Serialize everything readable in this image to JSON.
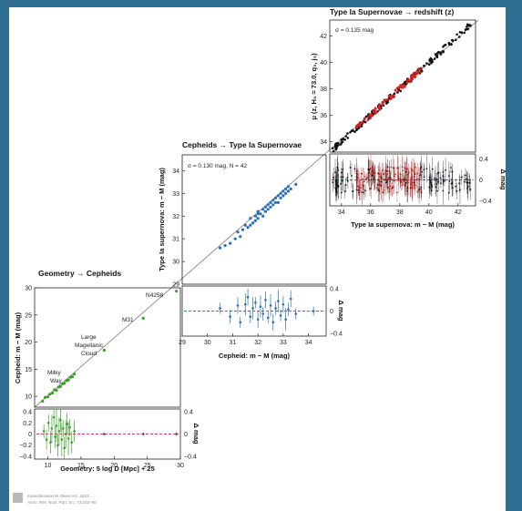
{
  "theme": {
    "background": "#2f6f92",
    "figure_background": "#ffffff",
    "colors": {
      "geometry": "#3ba02a",
      "cepheid": "#2a6fb8",
      "sn_red": "#d42020",
      "sn_black": "#111111",
      "zero_line": "#d7337a",
      "diagonal": "#8a8a8a"
    }
  },
  "credit": {
    "line1": "Kamionkowski M, Riess AG. 2023.",
    "line2": "Annu. Rev. Nucl. Part. Sci. 73:153–80"
  },
  "chart_data": [
    {
      "id": "geometry-cepheids",
      "type": "scatter",
      "title": "Geometry → Cepheids",
      "xlabel": "Geometry: 5 log D [Mpc] + 25",
      "ylabel": "Cepheid: m − M (mag)",
      "xlim": [
        8,
        30
      ],
      "ylim": [
        8,
        30
      ],
      "xticks": [
        "10",
        "15",
        "20",
        "25",
        "30"
      ],
      "yticks": [
        "10",
        "15",
        "20",
        "25",
        "30"
      ],
      "annotations": [
        {
          "text": "N4258",
          "x": 29.4,
          "y": 29.4
        },
        {
          "text": "M31",
          "x": 24.4,
          "y": 24.4
        },
        {
          "text": "Large",
          "x": 18.5,
          "y": 18.5
        },
        {
          "text": "Magellanic",
          "x": 18.5,
          "y": 18.5
        },
        {
          "text": "Cloud",
          "x": 18.5,
          "y": 18.5
        },
        {
          "text": "Milky",
          "x": 10.5,
          "y": 10.5
        },
        {
          "text": "Way",
          "x": 10.5,
          "y": 10.5
        }
      ],
      "series": [
        {
          "points": [
            [
              9.2,
              9.1
            ],
            [
              9.6,
              9.8
            ],
            [
              10.0,
              9.9
            ],
            [
              10.3,
              10.4
            ],
            [
              10.7,
              10.6
            ],
            [
              11.0,
              11.2
            ],
            [
              11.3,
              11.1
            ],
            [
              11.6,
              11.7
            ],
            [
              11.9,
              11.8
            ],
            [
              12.2,
              12.3
            ],
            [
              12.5,
              12.4
            ],
            [
              12.8,
              12.9
            ],
            [
              13.1,
              13.0
            ],
            [
              13.4,
              13.5
            ],
            [
              13.7,
              13.6
            ],
            [
              14.0,
              14.1
            ],
            [
              18.5,
              18.5
            ],
            [
              24.4,
              24.4
            ],
            [
              29.4,
              29.4
            ]
          ]
        }
      ],
      "residuals": {
        "ylabel": "Δ mag",
        "ylim": [
          -0.45,
          0.45
        ],
        "yticks_left": [
          "0.4",
          "0.2",
          "0",
          "−0.2",
          "−0.4"
        ],
        "yticks_right": [
          "0.4",
          "0",
          "−0.4"
        ],
        "points": [
          [
            9.4,
            0.05,
            0.12
          ],
          [
            9.8,
            -0.1,
            0.18
          ],
          [
            10.1,
            0.2,
            0.15
          ],
          [
            10.4,
            -0.15,
            0.2
          ],
          [
            10.6,
            0.1,
            0.25
          ],
          [
            10.9,
            0.3,
            0.15
          ],
          [
            11.1,
            -0.05,
            0.2
          ],
          [
            11.3,
            0.15,
            0.3
          ],
          [
            11.5,
            -0.2,
            0.2
          ],
          [
            11.7,
            0.05,
            0.25
          ],
          [
            11.9,
            0.25,
            0.2
          ],
          [
            12.1,
            -0.1,
            0.3
          ],
          [
            12.3,
            0.1,
            0.15
          ],
          [
            12.5,
            -0.25,
            0.2
          ],
          [
            12.7,
            0.0,
            0.25
          ],
          [
            12.9,
            0.18,
            0.2
          ],
          [
            13.1,
            -0.08,
            0.3
          ],
          [
            13.3,
            0.12,
            0.15
          ],
          [
            13.6,
            -0.15,
            0.2
          ],
          [
            14.0,
            0.05,
            0.2
          ],
          [
            18.5,
            0.0,
            0.02
          ],
          [
            24.4,
            0.0,
            0.03
          ],
          [
            29.4,
            0.0,
            0.03
          ]
        ]
      }
    },
    {
      "id": "cepheids-sn",
      "type": "scatter",
      "title": "Cepheids → Type Ia Supernovae",
      "xlabel": "Cepheid: m − M (mag)",
      "ylabel": "Type Ia supernova: m − M (mag)",
      "xlim": [
        29,
        34.7
      ],
      "ylim": [
        29,
        34.7
      ],
      "xticks": [
        "29",
        "30",
        "31",
        "32",
        "33",
        "34"
      ],
      "yticks": [
        "29",
        "30",
        "31",
        "32",
        "33",
        "34"
      ],
      "annotation": "σ = 0.130 mag, N = 42",
      "series": [
        {
          "points": [
            [
              30.5,
              30.6
            ],
            [
              30.9,
              30.8
            ],
            [
              31.2,
              31.3
            ],
            [
              31.3,
              31.1
            ],
            [
              31.5,
              31.6
            ],
            [
              31.6,
              31.5
            ],
            [
              31.7,
              31.9
            ],
            [
              31.8,
              31.7
            ],
            [
              31.9,
              32.0
            ],
            [
              32.0,
              31.9
            ],
            [
              32.0,
              32.2
            ],
            [
              32.1,
              32.1
            ],
            [
              32.2,
              32.3
            ],
            [
              32.3,
              32.2
            ],
            [
              32.3,
              32.4
            ],
            [
              32.4,
              32.5
            ],
            [
              32.5,
              32.4
            ],
            [
              32.5,
              32.6
            ],
            [
              32.6,
              32.7
            ],
            [
              32.7,
              32.6
            ],
            [
              32.7,
              32.8
            ],
            [
              32.8,
              32.9
            ],
            [
              32.9,
              32.8
            ],
            [
              32.9,
              33.0
            ],
            [
              33.0,
              33.1
            ],
            [
              33.0,
              32.9
            ],
            [
              33.1,
              33.2
            ],
            [
              33.1,
              33.0
            ],
            [
              33.2,
              33.3
            ],
            [
              32.2,
              32.0
            ],
            [
              31.4,
              31.4
            ],
            [
              31.1,
              31.0
            ],
            [
              30.7,
              30.7
            ],
            [
              32.6,
              32.5
            ],
            [
              32.8,
              32.6
            ],
            [
              33.2,
              33.1
            ],
            [
              33.5,
              33.4
            ],
            [
              32.4,
              32.3
            ],
            [
              31.9,
              31.8
            ],
            [
              31.7,
              31.6
            ],
            [
              33.3,
              33.2
            ],
            [
              32.0,
              32.1
            ]
          ]
        }
      ],
      "residuals": {
        "ylabel": "Δ mag",
        "ylim": [
          -0.45,
          0.45
        ],
        "yticks": [
          "0.4",
          "0",
          "−0.4"
        ],
        "points": [
          [
            30.5,
            0.05,
            0.1
          ],
          [
            30.9,
            -0.1,
            0.12
          ],
          [
            31.2,
            0.1,
            0.15
          ],
          [
            31.3,
            -0.2,
            0.1
          ],
          [
            31.5,
            0.12,
            0.2
          ],
          [
            31.6,
            0.25,
            0.15
          ],
          [
            31.7,
            -0.1,
            0.12
          ],
          [
            31.8,
            0.05,
            0.2
          ],
          [
            31.9,
            0.15,
            0.1
          ],
          [
            32.0,
            -0.15,
            0.15
          ],
          [
            32.1,
            0.08,
            0.2
          ],
          [
            32.2,
            -0.05,
            0.12
          ],
          [
            32.3,
            0.2,
            0.15
          ],
          [
            32.4,
            -0.12,
            0.1
          ],
          [
            32.5,
            0.1,
            0.2
          ],
          [
            32.6,
            -0.2,
            0.15
          ],
          [
            32.7,
            0.05,
            0.12
          ],
          [
            32.8,
            0.18,
            0.2
          ],
          [
            32.9,
            -0.08,
            0.1
          ],
          [
            33.0,
            0.12,
            0.15
          ],
          [
            33.1,
            -0.15,
            0.2
          ],
          [
            33.2,
            0.03,
            0.12
          ],
          [
            33.3,
            0.22,
            0.15
          ],
          [
            33.5,
            -0.05,
            0.1
          ],
          [
            34.2,
            0.0,
            0.08
          ]
        ]
      }
    },
    {
      "id": "sn-redshift",
      "type": "scatter",
      "title": "Type Ia Supernovae → redshift (z)",
      "xlabel": "Type Ia supernova: m − M (mag)",
      "ylabel": "μ (z, H₀ = 73.0, q₀, j₀)",
      "xlim": [
        33.2,
        43.2
      ],
      "ylim": [
        33.2,
        43.2
      ],
      "xticks": [
        "34",
        "36",
        "38",
        "40",
        "42"
      ],
      "yticks": [
        "34",
        "36",
        "38",
        "40",
        "42"
      ],
      "annotation": "σ = 0.135 mag",
      "series": [
        {
          "name": "black",
          "x_range": [
            33.3,
            43.0
          ],
          "count": 170
        },
        {
          "name": "red",
          "x_range": [
            35.0,
            39.5
          ],
          "count": 90
        }
      ],
      "residuals": {
        "ylabel": "Δ mag",
        "ylim": [
          -0.5,
          0.5
        ],
        "yticks": [
          "0.4",
          "0",
          "−0.4"
        ]
      }
    }
  ]
}
